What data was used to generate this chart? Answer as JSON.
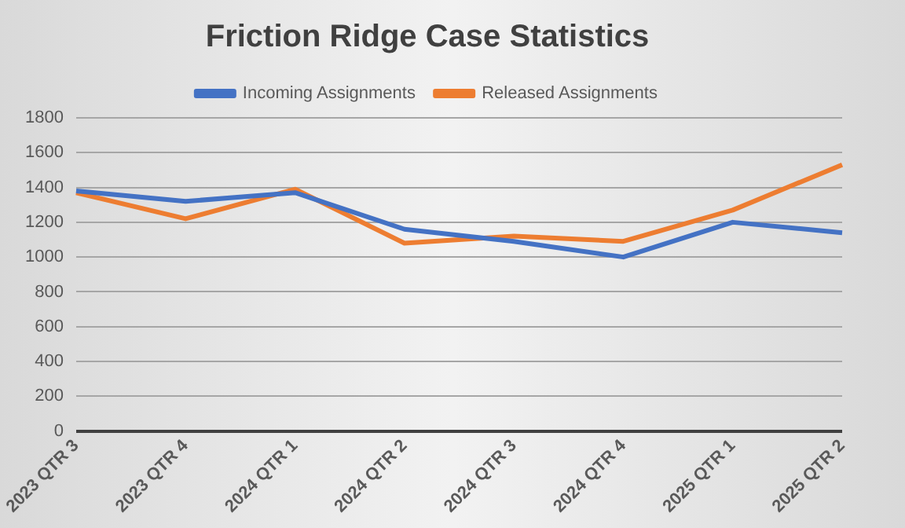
{
  "chart_data": {
    "type": "line",
    "title": "Friction Ridge Case Statistics",
    "categories": [
      "2023 QTR 3",
      "2023 QTR 4",
      "2024 QTR 1",
      "2024 QTR 2",
      "2024 QTR 3",
      "2024 QTR 4",
      "2025 QTR 1",
      "2025 QTR 2"
    ],
    "series": [
      {
        "name": "Incoming Assignments",
        "color": "#4472c4",
        "values": [
          1380,
          1320,
          1370,
          1160,
          1090,
          1000,
          1200,
          1140
        ]
      },
      {
        "name": "Released Assignments",
        "color": "#ed7d31",
        "values": [
          1370,
          1220,
          1390,
          1080,
          1120,
          1090,
          1270,
          1530
        ]
      }
    ],
    "ylim": [
      0,
      1800
    ],
    "yticks": [
      0,
      200,
      400,
      600,
      800,
      1000,
      1200,
      1400,
      1600,
      1800
    ],
    "grid": "y",
    "legend": "top",
    "marker": "none",
    "line_style": "solid"
  }
}
